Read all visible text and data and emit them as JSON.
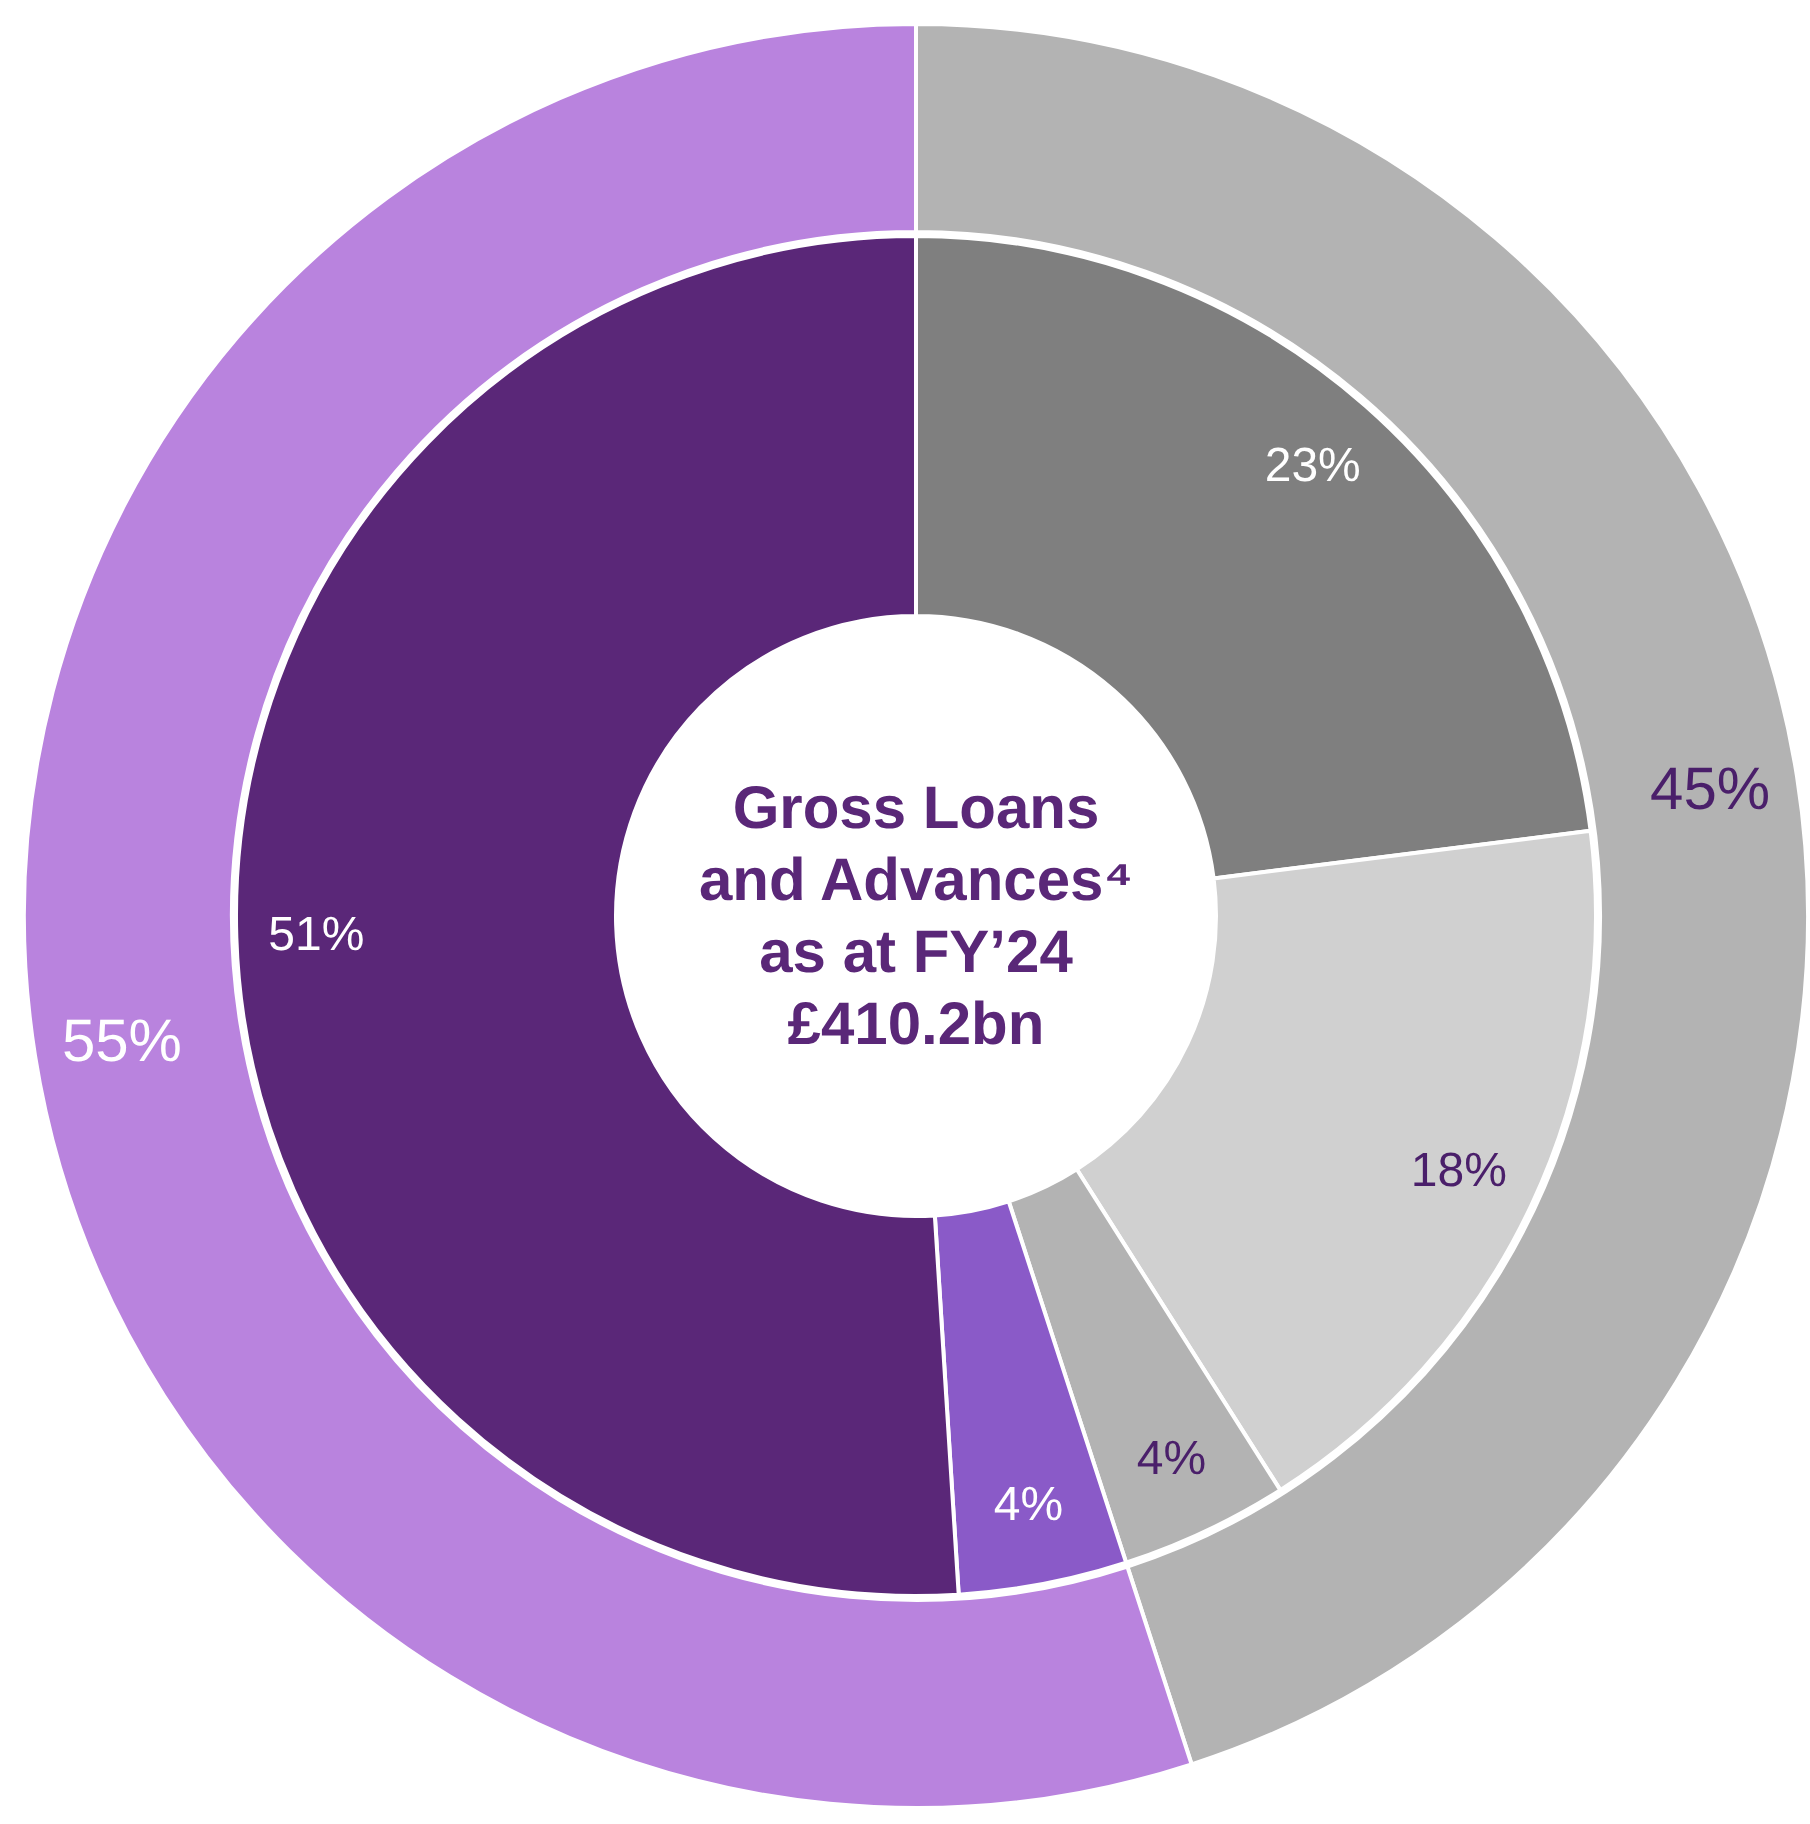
{
  "chart_data": {
    "type": "donut",
    "title": "Gross Loans and Advances⁴ as at FY’24 £410.2bn",
    "series": [
      {
        "values": [
          45,
          55
        ],
        "colors": [
          "#b3b3b3",
          "#b983de"
        ],
        "value_labels": [
          "45%",
          "55%"
        ]
      },
      {
        "values": [
          23,
          18,
          4,
          4,
          51
        ],
        "colors": [
          "#7f7f7f",
          "#d0d0d0",
          "#b3b3b3",
          "#8a5ac8",
          "#5a2778"
        ],
        "value_labels": [
          "23%",
          "18%",
          "4%",
          "4%",
          "51%"
        ]
      }
    ]
  }
}
